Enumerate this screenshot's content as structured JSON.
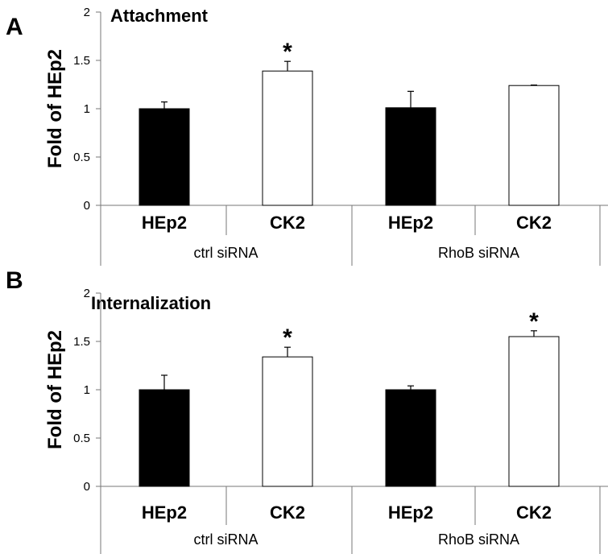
{
  "chart_data": [
    {
      "type": "bar",
      "panel": "A",
      "title": "Attachment",
      "ylabel": "Fold of HEp2",
      "ylim": [
        0,
        2
      ],
      "yticks": [
        "0",
        "0.5",
        "1",
        "1.5",
        "2"
      ],
      "categories": [
        "HEp2",
        "CK2",
        "HEp2",
        "CK2"
      ],
      "groups": [
        {
          "label": "ctrl siRNA",
          "span": [
            0,
            1
          ]
        },
        {
          "label": "RhoB siRNA",
          "span": [
            2,
            3
          ]
        }
      ],
      "values": [
        1.0,
        1.39,
        1.01,
        1.24
      ],
      "errors": [
        0.07,
        0.1,
        0.17,
        0.005
      ],
      "significance": [
        "",
        "*",
        "",
        ""
      ],
      "bar_fills": [
        "#000000",
        "#ffffff",
        "#000000",
        "#ffffff"
      ],
      "grid": false
    },
    {
      "type": "bar",
      "panel": "B",
      "title": "Internalization",
      "ylabel": "Fold of HEp2",
      "ylim": [
        0,
        2
      ],
      "yticks": [
        "0",
        "0.5",
        "1",
        "1.5",
        "2"
      ],
      "categories": [
        "HEp2",
        "CK2",
        "HEp2",
        "CK2"
      ],
      "groups": [
        {
          "label": "ctrl siRNA",
          "span": [
            0,
            1
          ]
        },
        {
          "label": "RhoB siRNA",
          "span": [
            2,
            3
          ]
        }
      ],
      "values": [
        1.0,
        1.34,
        1.0,
        1.55
      ],
      "errors": [
        0.15,
        0.1,
        0.04,
        0.06
      ],
      "significance": [
        "",
        "*",
        "",
        "*"
      ],
      "bar_fills": [
        "#000000",
        "#ffffff",
        "#000000",
        "#ffffff"
      ],
      "grid": false
    }
  ]
}
